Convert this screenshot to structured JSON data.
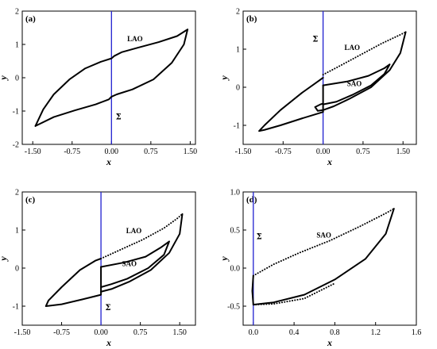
{
  "chart_data": [
    {
      "type": "line",
      "panel_label": "(a)",
      "xlabel": "x",
      "ylabel": "y",
      "xlim": [
        -1.7,
        1.6
      ],
      "ylim": [
        -2,
        2
      ],
      "xticks": [
        "-1.50",
        "-0.75",
        "0.00",
        "0.75",
        "1.50"
      ],
      "xtick_values": [
        -1.5,
        -0.75,
        0,
        0.75,
        1.5
      ],
      "yticks": [
        "-2",
        "-1",
        "0",
        "1",
        "2"
      ],
      "ytick_values": [
        -2,
        -1,
        0,
        1,
        2
      ],
      "section_line_x": 0,
      "section_color": "#2020d0",
      "annotations": [
        {
          "text": "LAO",
          "x": 0.3,
          "y": 1.1
        },
        {
          "text": "Σ",
          "x": 0.08,
          "y": -1.25
        }
      ],
      "series": [
        {
          "style": "solid",
          "points": [
            [
              -1.45,
              -1.45
            ],
            [
              -1.3,
              -0.95
            ],
            [
              -1.1,
              -0.5
            ],
            [
              -0.8,
              -0.05
            ],
            [
              -0.5,
              0.28
            ],
            [
              -0.2,
              0.48
            ],
            [
              0.0,
              0.58
            ],
            [
              0.05,
              0.65
            ],
            [
              0.2,
              0.77
            ],
            [
              0.5,
              0.9
            ],
            [
              0.9,
              1.07
            ],
            [
              1.25,
              1.25
            ],
            [
              1.45,
              1.45
            ],
            [
              1.38,
              1.0
            ],
            [
              1.15,
              0.45
            ],
            [
              0.8,
              -0.05
            ],
            [
              0.4,
              -0.35
            ],
            [
              0.1,
              -0.5
            ],
            [
              0.0,
              -0.57
            ],
            [
              -0.05,
              -0.65
            ],
            [
              -0.3,
              -0.8
            ],
            [
              -0.7,
              -0.98
            ],
            [
              -1.1,
              -1.18
            ],
            [
              -1.45,
              -1.45
            ]
          ]
        }
      ]
    },
    {
      "type": "line",
      "panel_label": "(b)",
      "xlabel": "x",
      "ylabel": "y",
      "xlim": [
        -1.5,
        1.75
      ],
      "ylim": [
        -1.5,
        2
      ],
      "xticks": [
        "-1.50",
        "-0.75",
        "0.00",
        "0.75",
        "1.50"
      ],
      "xtick_values": [
        -1.5,
        -0.75,
        0,
        0.75,
        1.5
      ],
      "yticks": [
        "-1",
        "0",
        "1",
        "2"
      ],
      "ytick_values": [
        -1,
        0,
        1,
        2
      ],
      "section_line_x": 0,
      "section_color": "#2020d0",
      "annotations": [
        {
          "text": "LAO",
          "x": 0.4,
          "y": 0.98
        },
        {
          "text": "SAO",
          "x": 0.45,
          "y": 0.03
        },
        {
          "text": "Σ",
          "x": -0.2,
          "y": 1.2
        }
      ],
      "series": [
        {
          "style": "dotted",
          "points": [
            [
              0.0,
              0.33
            ],
            [
              0.3,
              0.55
            ],
            [
              0.7,
              0.85
            ],
            [
              1.1,
              1.15
            ],
            [
              1.45,
              1.38
            ],
            [
              1.55,
              1.45
            ]
          ]
        },
        {
          "style": "solid",
          "points": [
            [
              1.55,
              1.45
            ],
            [
              1.45,
              0.9
            ],
            [
              1.25,
              0.45
            ],
            [
              0.9,
              0.0
            ],
            [
              0.5,
              -0.3
            ],
            [
              0.2,
              -0.5
            ],
            [
              0.0,
              -0.6
            ],
            [
              -0.1,
              -0.62
            ],
            [
              -0.15,
              -0.52
            ],
            [
              -0.05,
              -0.45
            ],
            [
              0.0,
              -0.43
            ]
          ]
        },
        {
          "style": "solid",
          "points": [
            [
              0.0,
              0.05
            ],
            [
              0.45,
              0.15
            ],
            [
              0.85,
              0.3
            ],
            [
              1.15,
              0.5
            ],
            [
              1.25,
              0.6
            ],
            [
              1.15,
              0.35
            ],
            [
              0.9,
              0.05
            ],
            [
              0.55,
              -0.2
            ],
            [
              0.25,
              -0.38
            ],
            [
              0.0,
              -0.45
            ]
          ]
        },
        {
          "style": "solid",
          "points": [
            [
              0.0,
              0.05
            ],
            [
              0.0,
              -0.65
            ],
            [
              -0.4,
              -0.82
            ],
            [
              -0.8,
              -1.0
            ],
            [
              -1.1,
              -1.12
            ],
            [
              -1.2,
              -1.15
            ],
            [
              -1.1,
              -1.0
            ],
            [
              -0.8,
              -0.6
            ],
            [
              -0.4,
              -0.15
            ],
            [
              -0.1,
              0.15
            ],
            [
              0.0,
              0.25
            ]
          ]
        }
      ]
    },
    {
      "type": "line",
      "panel_label": "(c)",
      "xlabel": "x",
      "ylabel": "y",
      "xlim": [
        -1.5,
        1.8
      ],
      "ylim": [
        -1.5,
        2
      ],
      "xticks": [
        "-1.50",
        "-0.75",
        "0.00",
        "0.75",
        "1.50"
      ],
      "xtick_values": [
        -1.5,
        -0.75,
        0,
        0.75,
        1.5
      ],
      "yticks": [
        "-1",
        "0",
        "1",
        "2"
      ],
      "ytick_values": [
        -1,
        0,
        1,
        2
      ],
      "section_line_x": 0,
      "section_color": "#2020d0",
      "annotations": [
        {
          "text": "LAO",
          "x": 0.48,
          "y": 0.92
        },
        {
          "text": "SAO",
          "x": 0.4,
          "y": 0.05
        },
        {
          "text": "Σ",
          "x": 0.08,
          "y": -1.1
        }
      ],
      "series": [
        {
          "style": "dotted",
          "points": [
            [
              0.0,
              0.25
            ],
            [
              0.4,
              0.5
            ],
            [
              0.8,
              0.75
            ],
            [
              1.2,
              1.05
            ],
            [
              1.45,
              1.3
            ],
            [
              1.55,
              1.42
            ]
          ]
        },
        {
          "style": "solid",
          "points": [
            [
              1.55,
              1.42
            ],
            [
              1.5,
              0.9
            ],
            [
              1.3,
              0.4
            ],
            [
              0.95,
              -0.05
            ],
            [
              0.55,
              -0.35
            ],
            [
              0.2,
              -0.55
            ],
            [
              0.0,
              -0.62
            ]
          ]
        },
        {
          "style": "solid",
          "points": [
            [
              0.0,
              0.03
            ],
            [
              0.45,
              0.15
            ],
            [
              0.85,
              0.3
            ],
            [
              1.15,
              0.55
            ],
            [
              1.3,
              0.7
            ],
            [
              1.2,
              0.35
            ],
            [
              0.9,
              0.0
            ],
            [
              0.5,
              -0.28
            ],
            [
              0.2,
              -0.42
            ],
            [
              0.0,
              -0.5
            ]
          ]
        },
        {
          "style": "solid",
          "points": [
            [
              0.0,
              0.03
            ],
            [
              0.0,
              -0.7
            ],
            [
              -0.35,
              -0.82
            ],
            [
              -0.75,
              -0.95
            ],
            [
              -1.05,
              -1.0
            ],
            [
              -1.0,
              -0.85
            ],
            [
              -0.75,
              -0.5
            ],
            [
              -0.4,
              -0.05
            ],
            [
              -0.1,
              0.2
            ],
            [
              0.0,
              0.25
            ]
          ]
        }
      ]
    },
    {
      "type": "line",
      "panel_label": "(d)",
      "xlabel": "x",
      "ylabel": "y",
      "xlim": [
        -0.1,
        1.6
      ],
      "ylim": [
        -0.75,
        1.0
      ],
      "xticks": [
        "0.0",
        "0.4",
        "0.8",
        "1.2",
        "1.6"
      ],
      "xtick_values": [
        0,
        0.4,
        0.8,
        1.2,
        1.6
      ],
      "yticks": [
        "-0.5",
        "0.0",
        "0.5",
        "1.0"
      ],
      "ytick_values": [
        -0.5,
        0,
        0.5,
        1.0
      ],
      "section_line_x": 0,
      "section_color": "#2020d0",
      "annotations": [
        {
          "text": "SAO",
          "x": 0.62,
          "y": 0.4
        },
        {
          "text": "Σ",
          "x": 0.03,
          "y": 0.38
        }
      ],
      "series": [
        {
          "style": "dotted",
          "points": [
            [
              0.0,
              -0.1
            ],
            [
              0.2,
              0.05
            ],
            [
              0.45,
              0.2
            ],
            [
              0.75,
              0.36
            ],
            [
              1.05,
              0.55
            ],
            [
              1.3,
              0.72
            ],
            [
              1.38,
              0.78
            ]
          ]
        },
        {
          "style": "solid",
          "points": [
            [
              1.38,
              0.78
            ],
            [
              1.3,
              0.45
            ],
            [
              1.1,
              0.12
            ],
            [
              0.8,
              -0.15
            ],
            [
              0.5,
              -0.35
            ],
            [
              0.2,
              -0.45
            ],
            [
              0.0,
              -0.48
            ],
            [
              -0.01,
              -0.3
            ],
            [
              0.0,
              -0.1
            ]
          ]
        },
        {
          "style": "dotted",
          "points": [
            [
              0.0,
              -0.48
            ],
            [
              0.2,
              -0.47
            ],
            [
              0.5,
              -0.4
            ],
            [
              0.8,
              -0.2
            ]
          ]
        }
      ]
    }
  ]
}
